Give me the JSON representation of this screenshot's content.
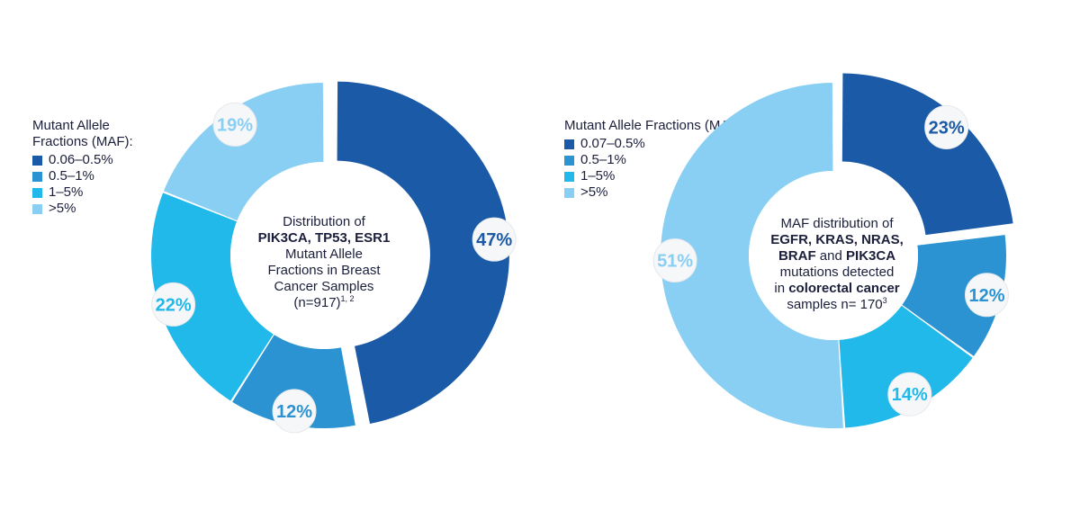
{
  "chart_data": [
    {
      "type": "pie",
      "legend_title": "Mutant Allele Fractions (MAF):",
      "legend_position": "left",
      "categories": [
        "0.06–0.5%",
        "0.5–1%",
        "1–5%",
        ">5%"
      ],
      "values": [
        47,
        12,
        22,
        19
      ],
      "labels": [
        "47%",
        "12%",
        "22%",
        "19%"
      ],
      "colors": [
        "#1b5aa6",
        "#2b93d1",
        "#21b8ea",
        "#88cff3"
      ],
      "label_colors": [
        "#1b5aa6",
        "#2b93d1",
        "#21b8ea",
        "#88cff3"
      ],
      "exploded_slice": 0,
      "center_label": {
        "line1": "Distribution of",
        "line2": "PIK3CA, TP53, ESR1",
        "line3": "Mutant Allele",
        "line4": "Fractions in Breast",
        "line5": "Cancer Samples",
        "line6": "(n=917)",
        "sup": "1, 2"
      }
    },
    {
      "type": "pie",
      "legend_title": "Mutant Allele Fractions (MAF):",
      "legend_position": "left",
      "categories": [
        "0.07–0.5%",
        "0.5–1%",
        "1–5%",
        ">5%"
      ],
      "values": [
        23,
        12,
        14,
        51
      ],
      "labels": [
        "23%",
        "12%",
        "14%",
        "51%"
      ],
      "colors": [
        "#1b5aa6",
        "#2b93d1",
        "#21b8ea",
        "#88cff3"
      ],
      "label_colors": [
        "#1b5aa6",
        "#2b93d1",
        "#21b8ea",
        "#88cff3"
      ],
      "exploded_slice": 0,
      "center_label": {
        "line1": "MAF distribution of",
        "line2": "EGFR, KRAS, NRAS,",
        "line3a": "BRAF",
        "line3b": " and ",
        "line3c": "PIK3CA",
        "line4": "mutations detected",
        "line5a": "in ",
        "line5b": "colorectal cancer",
        "line6": "samples n= 170",
        "sup": "3"
      }
    }
  ]
}
